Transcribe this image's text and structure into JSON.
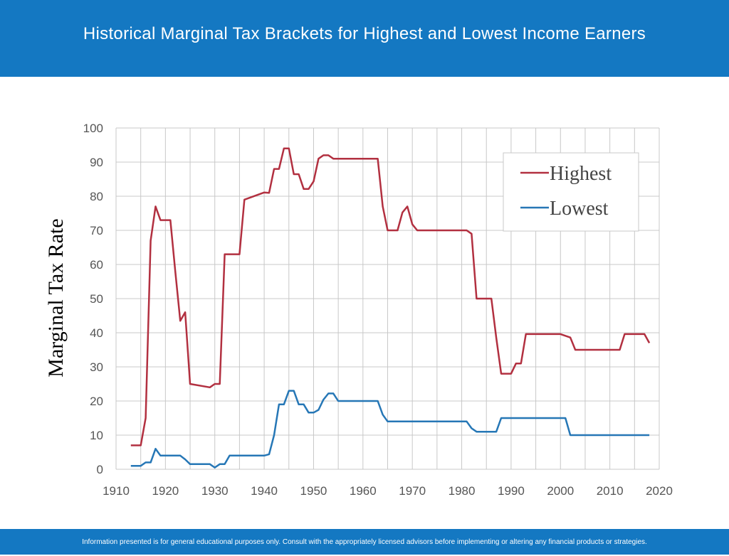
{
  "header": {
    "title": "Historical Marginal Tax Brackets for Highest and Lowest Income Earners"
  },
  "footer": {
    "disclaimer": "Information presented is for general educational purposes only. Consult with the appropriately licensed advisors before implementing or altering any financial products or strategies."
  },
  "colors": {
    "brand": "#1478c2",
    "highest": "#b23040",
    "lowest": "#2677b6",
    "grid": "#c8c8c8"
  },
  "chart_data": {
    "type": "line",
    "title": "",
    "xlabel": "",
    "ylabel": "Marginal Tax Rate",
    "xlim": [
      1910,
      2020
    ],
    "ylim": [
      0,
      100
    ],
    "x_ticks": [
      1910,
      1920,
      1930,
      1940,
      1950,
      1960,
      1970,
      1980,
      1990,
      2000,
      2010,
      2020
    ],
    "y_ticks": [
      0,
      10,
      20,
      30,
      40,
      50,
      60,
      70,
      80,
      90,
      100
    ],
    "grid": true,
    "legend_position": "top-right",
    "series": [
      {
        "name": "Highest",
        "color": "#b23040",
        "points": [
          [
            1913,
            7
          ],
          [
            1915,
            7
          ],
          [
            1916,
            15
          ],
          [
            1917,
            67
          ],
          [
            1918,
            77
          ],
          [
            1919,
            73
          ],
          [
            1921,
            73
          ],
          [
            1922,
            58
          ],
          [
            1923,
            43.5
          ],
          [
            1924,
            46
          ],
          [
            1925,
            25
          ],
          [
            1929,
            24
          ],
          [
            1930,
            25
          ],
          [
            1931,
            25
          ],
          [
            1932,
            63
          ],
          [
            1935,
            63
          ],
          [
            1936,
            79
          ],
          [
            1940,
            81.1
          ],
          [
            1941,
            81
          ],
          [
            1942,
            88
          ],
          [
            1943,
            88
          ],
          [
            1944,
            94
          ],
          [
            1945,
            94
          ],
          [
            1946,
            86.45
          ],
          [
            1947,
            86.45
          ],
          [
            1948,
            82.13
          ],
          [
            1949,
            82.13
          ],
          [
            1950,
            84.36
          ],
          [
            1951,
            91
          ],
          [
            1952,
            92
          ],
          [
            1953,
            92
          ],
          [
            1954,
            91
          ],
          [
            1963,
            91
          ],
          [
            1964,
            77
          ],
          [
            1965,
            70
          ],
          [
            1967,
            70
          ],
          [
            1968,
            75.25
          ],
          [
            1969,
            77
          ],
          [
            1970,
            71.75
          ],
          [
            1971,
            70
          ],
          [
            1981,
            70
          ],
          [
            1982,
            69
          ],
          [
            1983,
            50
          ],
          [
            1986,
            50
          ],
          [
            1987,
            38.5
          ],
          [
            1988,
            28
          ],
          [
            1990,
            28
          ],
          [
            1991,
            31
          ],
          [
            1992,
            31
          ],
          [
            1993,
            39.6
          ],
          [
            2000,
            39.6
          ],
          [
            2001,
            39.1
          ],
          [
            2002,
            38.6
          ],
          [
            2003,
            35
          ],
          [
            2012,
            35
          ],
          [
            2013,
            39.6
          ],
          [
            2017,
            39.6
          ],
          [
            2018,
            37
          ]
        ]
      },
      {
        "name": "Lowest",
        "color": "#2677b6",
        "points": [
          [
            1913,
            1
          ],
          [
            1915,
            1
          ],
          [
            1916,
            2
          ],
          [
            1917,
            2
          ],
          [
            1918,
            6
          ],
          [
            1919,
            4
          ],
          [
            1923,
            4
          ],
          [
            1924,
            2.9
          ],
          [
            1925,
            1.5
          ],
          [
            1929,
            1.5
          ],
          [
            1930,
            0.5
          ],
          [
            1931,
            1.5
          ],
          [
            1932,
            1.5
          ],
          [
            1933,
            4
          ],
          [
            1940,
            4
          ],
          [
            1941,
            4.4
          ],
          [
            1942,
            10
          ],
          [
            1943,
            19
          ],
          [
            1944,
            19
          ],
          [
            1945,
            23
          ],
          [
            1946,
            23
          ],
          [
            1947,
            19
          ],
          [
            1948,
            19
          ],
          [
            1949,
            16.6
          ],
          [
            1950,
            16.6
          ],
          [
            1951,
            17.4
          ],
          [
            1952,
            20.4
          ],
          [
            1953,
            22.2
          ],
          [
            1954,
            22.2
          ],
          [
            1955,
            20
          ],
          [
            1963,
            20
          ],
          [
            1964,
            16
          ],
          [
            1965,
            14
          ],
          [
            1981,
            14
          ],
          [
            1982,
            12
          ],
          [
            1983,
            11
          ],
          [
            1987,
            11
          ],
          [
            1988,
            15
          ],
          [
            2000,
            15
          ],
          [
            2001,
            15
          ],
          [
            2002,
            10
          ],
          [
            2018,
            10
          ]
        ]
      }
    ]
  }
}
